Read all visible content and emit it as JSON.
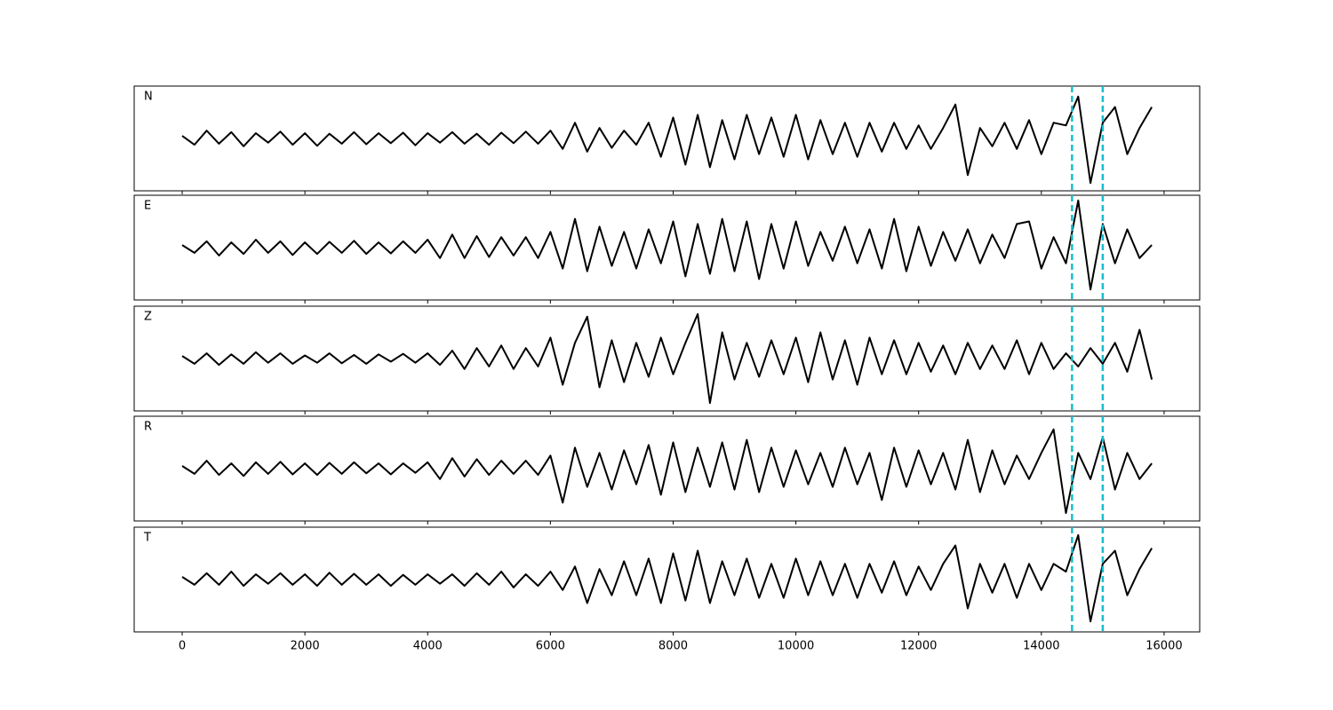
{
  "chart_data": {
    "type": "line",
    "x": [
      0,
      200,
      400,
      600,
      800,
      1000,
      1200,
      1400,
      1600,
      1800,
      2000,
      2200,
      2400,
      2600,
      2800,
      3000,
      3200,
      3400,
      3600,
      3800,
      4000,
      4200,
      4400,
      4600,
      4800,
      5000,
      5200,
      5400,
      5600,
      5800,
      6000,
      6200,
      6400,
      6600,
      6800,
      7000,
      7200,
      7400,
      7600,
      7800,
      8000,
      8200,
      8400,
      8600,
      8800,
      9000,
      9200,
      9400,
      9600,
      9800,
      10000,
      10200,
      10400,
      10600,
      10800,
      11000,
      11200,
      11400,
      11600,
      11800,
      12000,
      12200,
      12400,
      12600,
      12800,
      13000,
      13200,
      13400,
      13600,
      13800,
      14000,
      14200,
      14400,
      14600,
      14800,
      15000,
      15200,
      15400,
      15600,
      15800
    ],
    "xlim": [
      -782,
      16580
    ],
    "ylim": [
      -1,
      1
    ],
    "xticks": [
      0,
      2000,
      4000,
      6000,
      8000,
      10000,
      12000,
      14000,
      16000
    ],
    "vlines": [
      14500,
      15000
    ],
    "vline_color": "#17becf",
    "color": "#000000",
    "series": [
      {
        "name": "N",
        "values": [
          0.05,
          -0.12,
          0.15,
          -0.1,
          0.12,
          -0.15,
          0.1,
          -0.08,
          0.13,
          -0.12,
          0.1,
          -0.14,
          0.09,
          -0.1,
          0.12,
          -0.11,
          0.1,
          -0.09,
          0.11,
          -0.13,
          0.1,
          -0.08,
          0.12,
          -0.1,
          0.09,
          -0.12,
          0.11,
          -0.09,
          0.13,
          -0.1,
          0.15,
          -0.2,
          0.3,
          -0.25,
          0.2,
          -0.18,
          0.15,
          -0.12,
          0.3,
          -0.35,
          0.4,
          -0.5,
          0.45,
          -0.55,
          0.35,
          -0.4,
          0.45,
          -0.3,
          0.4,
          -0.35,
          0.45,
          -0.4,
          0.35,
          -0.3,
          0.3,
          -0.35,
          0.3,
          -0.25,
          0.3,
          -0.2,
          0.25,
          -0.2,
          0.2,
          0.65,
          -0.7,
          0.2,
          -0.15,
          0.3,
          -0.2,
          0.35,
          -0.3,
          0.3,
          0.25,
          0.8,
          -0.85,
          0.3,
          0.6,
          -0.3,
          0.2,
          0.6
        ]
      },
      {
        "name": "E",
        "values": [
          0.05,
          -0.1,
          0.12,
          -0.15,
          0.1,
          -0.12,
          0.15,
          -0.1,
          0.12,
          -0.14,
          0.1,
          -0.12,
          0.11,
          -0.1,
          0.13,
          -0.12,
          0.1,
          -0.11,
          0.12,
          -0.1,
          0.15,
          -0.2,
          0.25,
          -0.2,
          0.22,
          -0.18,
          0.2,
          -0.15,
          0.2,
          -0.2,
          0.3,
          -0.4,
          0.55,
          -0.45,
          0.4,
          -0.35,
          0.3,
          -0.4,
          0.35,
          -0.3,
          0.5,
          -0.55,
          0.45,
          -0.5,
          0.55,
          -0.45,
          0.5,
          -0.6,
          0.45,
          -0.4,
          0.5,
          -0.35,
          0.3,
          -0.25,
          0.4,
          -0.3,
          0.35,
          -0.4,
          0.55,
          -0.45,
          0.4,
          -0.35,
          0.3,
          -0.25,
          0.35,
          -0.3,
          0.25,
          -0.2,
          0.45,
          0.5,
          -0.4,
          0.2,
          -0.3,
          0.9,
          -0.8,
          0.45,
          -0.3,
          0.35,
          -0.2,
          0.05
        ]
      },
      {
        "name": "Z",
        "values": [
          0.05,
          -0.1,
          0.1,
          -0.12,
          0.08,
          -0.1,
          0.12,
          -0.08,
          0.1,
          -0.1,
          0.06,
          -0.08,
          0.1,
          -0.09,
          0.07,
          -0.1,
          0.08,
          -0.06,
          0.09,
          -0.08,
          0.1,
          -0.12,
          0.15,
          -0.2,
          0.2,
          -0.15,
          0.25,
          -0.2,
          0.2,
          -0.15,
          0.4,
          -0.5,
          0.3,
          0.8,
          -0.55,
          0.35,
          -0.45,
          0.3,
          -0.35,
          0.4,
          -0.3,
          0.3,
          0.85,
          -0.85,
          0.5,
          -0.4,
          0.3,
          -0.35,
          0.35,
          -0.3,
          0.4,
          -0.45,
          0.5,
          -0.4,
          0.35,
          -0.5,
          0.4,
          -0.3,
          0.35,
          -0.3,
          0.3,
          -0.25,
          0.25,
          -0.3,
          0.3,
          -0.2,
          0.25,
          -0.2,
          0.35,
          -0.3,
          0.3,
          -0.2,
          0.1,
          -0.15,
          0.2,
          -0.1,
          0.3,
          -0.25,
          0.55,
          -0.4
        ]
      },
      {
        "name": "R",
        "values": [
          0.05,
          -0.1,
          0.15,
          -0.12,
          0.1,
          -0.14,
          0.12,
          -0.1,
          0.13,
          -0.11,
          0.1,
          -0.12,
          0.11,
          -0.1,
          0.12,
          -0.09,
          0.1,
          -0.11,
          0.1,
          -0.08,
          0.12,
          -0.2,
          0.2,
          -0.15,
          0.18,
          -0.12,
          0.15,
          -0.1,
          0.15,
          -0.12,
          0.25,
          -0.65,
          0.4,
          -0.35,
          0.3,
          -0.4,
          0.35,
          -0.3,
          0.45,
          -0.5,
          0.5,
          -0.45,
          0.4,
          -0.35,
          0.5,
          -0.4,
          0.55,
          -0.45,
          0.4,
          -0.35,
          0.35,
          -0.3,
          0.3,
          -0.35,
          0.4,
          -0.3,
          0.3,
          -0.6,
          0.4,
          -0.35,
          0.35,
          -0.3,
          0.3,
          -0.4,
          0.55,
          -0.45,
          0.35,
          -0.3,
          0.25,
          -0.2,
          0.3,
          0.75,
          -0.85,
          0.3,
          -0.2,
          0.6,
          -0.4,
          0.3,
          -0.2,
          0.1
        ]
      },
      {
        "name": "T",
        "values": [
          0.05,
          -0.1,
          0.12,
          -0.1,
          0.15,
          -0.12,
          0.1,
          -0.08,
          0.12,
          -0.1,
          0.1,
          -0.12,
          0.13,
          -0.1,
          0.11,
          -0.1,
          0.1,
          -0.12,
          0.09,
          -0.1,
          0.1,
          -0.08,
          0.1,
          -0.12,
          0.12,
          -0.1,
          0.15,
          -0.15,
          0.1,
          -0.12,
          0.15,
          -0.2,
          0.25,
          -0.45,
          0.2,
          -0.3,
          0.35,
          -0.3,
          0.4,
          -0.45,
          0.5,
          -0.4,
          0.55,
          -0.45,
          0.35,
          -0.3,
          0.4,
          -0.35,
          0.3,
          -0.35,
          0.4,
          -0.3,
          0.35,
          -0.3,
          0.3,
          -0.35,
          0.3,
          -0.25,
          0.35,
          -0.3,
          0.25,
          -0.2,
          0.3,
          0.65,
          -0.55,
          0.3,
          -0.25,
          0.3,
          -0.35,
          0.3,
          -0.2,
          0.3,
          0.15,
          0.85,
          -0.8,
          0.3,
          0.55,
          -0.3,
          0.2,
          0.6
        ]
      }
    ]
  }
}
